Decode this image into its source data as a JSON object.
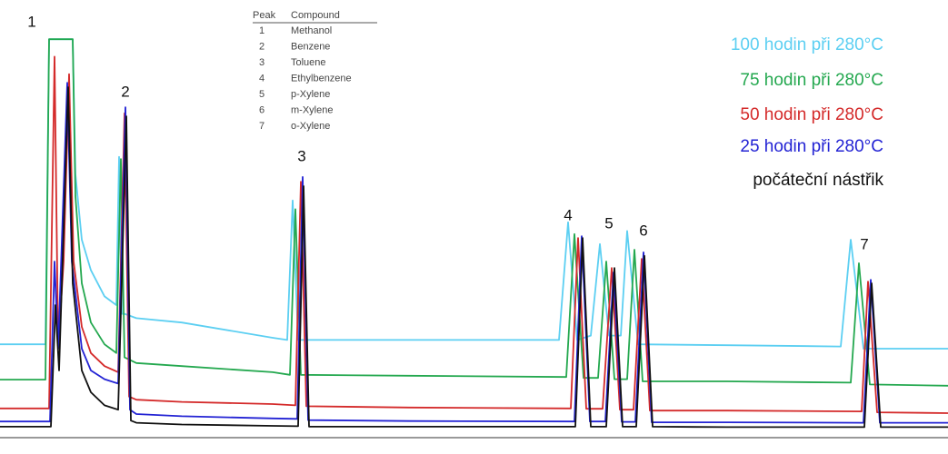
{
  "chart_data": {
    "type": "line",
    "xlim": [
      0,
      104.3
    ],
    "ylim": [
      0,
      100
    ],
    "peak_labels": [
      "1",
      "2",
      "3",
      "4",
      "5",
      "6",
      "7"
    ],
    "compound_table": {
      "headers": [
        "Peak",
        "Compound"
      ],
      "rows": [
        [
          "1",
          "Methanol"
        ],
        [
          "2",
          "Benzene"
        ],
        [
          "3",
          "Toluene"
        ],
        [
          "4",
          "Ethylbenzene"
        ],
        [
          "5",
          "p-Xylene"
        ],
        [
          "6",
          "m-Xylene"
        ],
        [
          "7",
          "o-Xylene"
        ]
      ]
    },
    "series": [
      {
        "name": "100 hodin při 280°C",
        "color": "#5ccff2",
        "x": [
          0,
          5.0,
          5.4,
          8.0,
          8.3,
          9,
          10,
          11.5,
          12.8,
          13.1,
          13.4,
          13.7,
          15,
          20,
          30,
          31.6,
          32.2,
          32.8,
          45,
          61.5,
          62.5,
          63.5,
          65,
          66,
          67,
          68.3,
          69,
          70.2,
          80,
          92.5,
          93.6,
          95,
          104.3
        ],
        "values": [
          21,
          21,
          91,
          91,
          60,
          45,
          38,
          32,
          30,
          64,
          28,
          28,
          27,
          26,
          22.5,
          22,
          54,
          22,
          22,
          22,
          49,
          22,
          23,
          44,
          23,
          23,
          47,
          21,
          20.8,
          20.5,
          45,
          20,
          20
        ]
      },
      {
        "name": "75 hodin při 280°C",
        "color": "#24a84f",
        "x": [
          0,
          5.0,
          5.4,
          8.0,
          8.3,
          9,
          10,
          11.5,
          12.8,
          13.3,
          13.7,
          15,
          20,
          30,
          31.9,
          32.5,
          33.1,
          45,
          62.3,
          63.2,
          64.2,
          65.8,
          66.7,
          67.6,
          69,
          69.8,
          70.7,
          80,
          93.6,
          94.5,
          95.7,
          104.3
        ],
        "values": [
          12.9,
          12.9,
          91,
          91,
          55,
          35,
          26,
          21,
          19,
          63.5,
          18,
          16.7,
          16,
          14.6,
          14,
          52,
          14,
          13.8,
          13.5,
          46.3,
          13.3,
          13.3,
          40,
          13,
          13,
          42.7,
          12.5,
          12.5,
          12.2,
          39.6,
          11.8,
          11.5
        ]
      },
      {
        "name": "50 hodin při 280°C",
        "color": "#d42a2a",
        "x": [
          0,
          5.4,
          6.0,
          6.4,
          7.0,
          7.6,
          8.1,
          9,
          10,
          11.5,
          13.0,
          13.7,
          14.2,
          15,
          20,
          30,
          32.5,
          33.1,
          33.7,
          45,
          62.8,
          63.6,
          64.5,
          66.3,
          67.3,
          68.2,
          69.7,
          70.6,
          71.5,
          80,
          94.8,
          95.5,
          96.5,
          104.3
        ],
        "values": [
          6.3,
          6.3,
          87,
          20,
          40,
          83,
          40,
          25,
          19,
          16,
          14.6,
          74,
          9,
          8.3,
          7.8,
          7.3,
          7,
          58.3,
          6.8,
          6.5,
          6.3,
          45.4,
          6.2,
          6.2,
          38.5,
          6,
          6,
          40.6,
          5.8,
          5.8,
          5.6,
          35.4,
          5.4,
          5.2
        ]
      },
      {
        "name": "25 hodin při 280°C",
        "color": "#2323d4",
        "x": [
          0,
          5.5,
          6.0,
          6.4,
          7.4,
          7.9,
          9,
          10,
          11.5,
          13.0,
          13.8,
          14.3,
          15,
          20,
          30,
          32.7,
          33.3,
          33.9,
          45,
          63.2,
          64.0,
          64.9,
          66.6,
          67.5,
          68.4,
          69.9,
          70.8,
          71.7,
          80,
          95,
          95.8,
          96.8,
          104.3
        ],
        "values": [
          3.3,
          3.3,
          40,
          20,
          81,
          40,
          20,
          15,
          13,
          12,
          75.4,
          6,
          5,
          4.5,
          4,
          3.9,
          59.4,
          3.6,
          3.4,
          3.3,
          45.8,
          3.3,
          3.3,
          37.5,
          3.2,
          3.2,
          42.1,
          3.1,
          3.1,
          3,
          35.8,
          3,
          3
        ]
      },
      {
        "name": "počáteční nástřik",
        "color": "#111111",
        "x": [
          0,
          5.6,
          6.1,
          6.5,
          7.5,
          8.0,
          9,
          10,
          11.5,
          13.0,
          13.9,
          14.4,
          15,
          20,
          30,
          32.8,
          33.4,
          34.0,
          45,
          63.3,
          64.1,
          65.0,
          66.7,
          67.6,
          68.5,
          70,
          70.9,
          71.8,
          80,
          95.1,
          95.9,
          96.9,
          104.3
        ],
        "values": [
          2.1,
          2.1,
          30,
          15,
          80,
          35,
          15,
          10,
          7,
          6,
          73.3,
          3.5,
          3,
          2.6,
          2.3,
          2.2,
          57.3,
          2.1,
          2.1,
          2.1,
          45.4,
          2.1,
          2.1,
          38.5,
          2.1,
          2.1,
          41.3,
          2.1,
          2,
          2,
          35,
          2,
          2
        ]
      }
    ]
  }
}
